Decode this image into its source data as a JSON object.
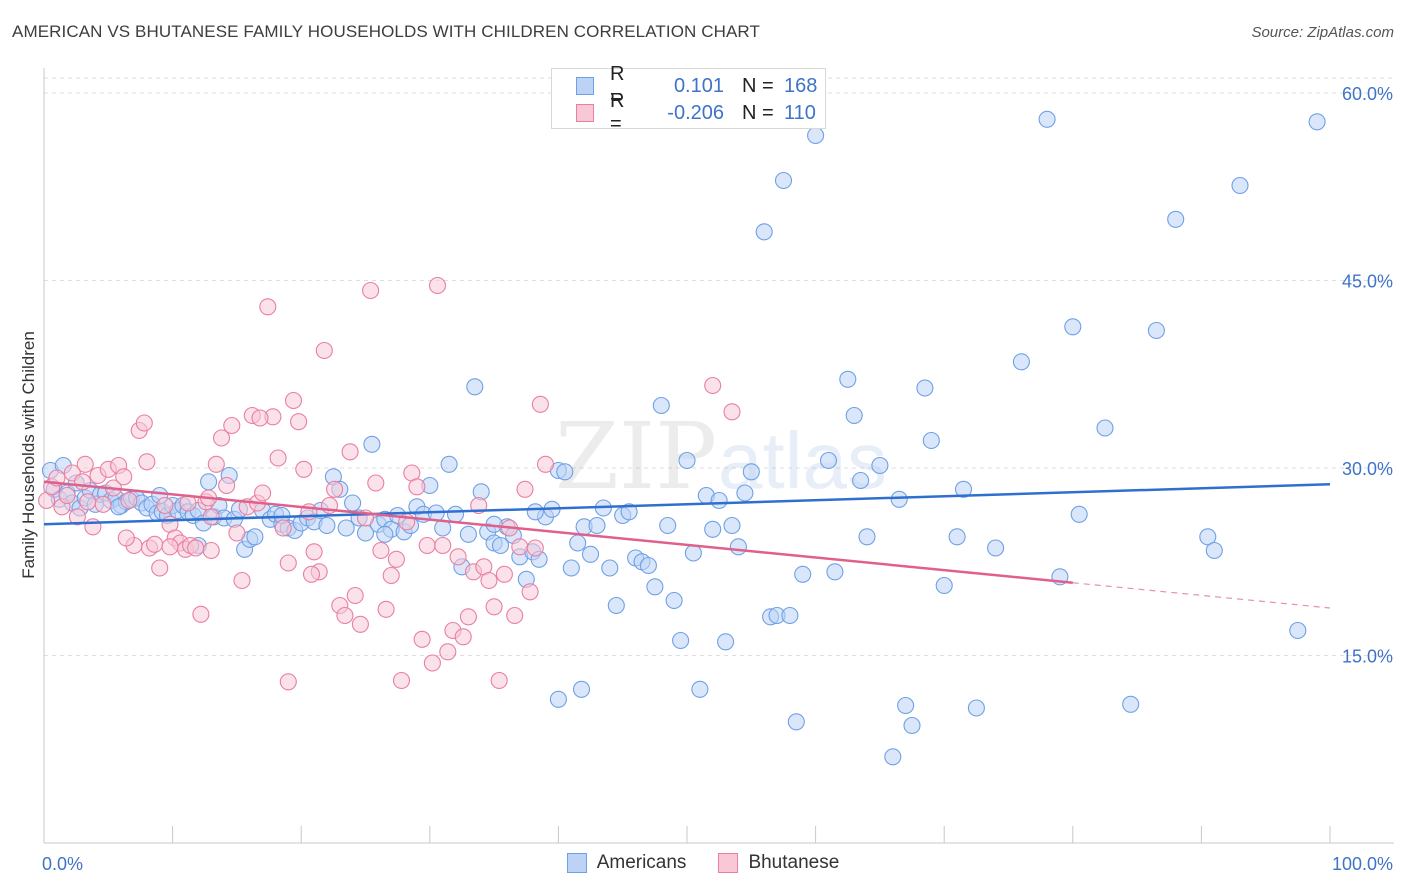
{
  "header": {
    "title": "AMERICAN VS BHUTANESE FAMILY HOUSEHOLDS WITH CHILDREN CORRELATION CHART",
    "source": "Source: ZipAtlas.com"
  },
  "watermark": {
    "part1": "ZIP",
    "part2": "atlas"
  },
  "legend": {
    "r_label": "R =",
    "n_label": "N =",
    "rows": [
      {
        "r": "0.101",
        "n": "168",
        "color": "#6fa0e6",
        "fill": "#bcd3f5"
      },
      {
        "r": "-0.206",
        "n": "110",
        "color": "#e97fa1",
        "fill": "#f8c8d7"
      }
    ]
  },
  "chart_data": {
    "type": "scatter",
    "title": "AMERICAN VS BHUTANESE FAMILY HOUSEHOLDS WITH CHILDREN CORRELATION CHART",
    "xlabel": "",
    "ylabel": "Family Households with Children",
    "xlim": [
      0,
      100
    ],
    "ylim": [
      0,
      62
    ],
    "x_tick_labels": [
      {
        "value": 0,
        "label": "0.0%"
      },
      {
        "value": 100,
        "label": "100.0%"
      }
    ],
    "y_tick_labels": [
      {
        "value": 15,
        "label": "15.0%"
      },
      {
        "value": 30,
        "label": "30.0%"
      },
      {
        "value": 45,
        "label": "45.0%"
      },
      {
        "value": 60,
        "label": "60.0%"
      }
    ],
    "grid": true,
    "legend_position": "bottom",
    "series": [
      {
        "name": "Americans",
        "color": "#6fa0e6",
        "fill": "#bcd3f5",
        "trend": {
          "x0": 0,
          "y0": 25.5,
          "x1": 100,
          "y1": 28.7,
          "dashed_from": null
        },
        "points": [
          [
            0.5,
            29.8
          ],
          [
            0.8,
            28.3
          ],
          [
            1.2,
            27.5
          ],
          [
            1.5,
            30.2
          ],
          [
            1.8,
            28.0
          ],
          [
            2.2,
            27.2
          ],
          [
            2.5,
            28.8
          ],
          [
            2.8,
            26.8
          ],
          [
            3.2,
            27.6
          ],
          [
            3.6,
            28.2
          ],
          [
            4.0,
            27.1
          ],
          [
            4.4,
            27.9
          ],
          [
            4.8,
            28.0
          ],
          [
            5.2,
            27.4
          ],
          [
            5.6,
            27.6
          ],
          [
            6.0,
            27.0
          ],
          [
            6.4,
            27.3
          ],
          [
            6.8,
            27.5
          ],
          [
            7.2,
            27.6
          ],
          [
            7.6,
            27.2
          ],
          [
            8.0,
            26.8
          ],
          [
            8.4,
            27.1
          ],
          [
            8.8,
            26.4
          ],
          [
            9.2,
            26.5
          ],
          [
            9.6,
            26.2
          ],
          [
            10.0,
            27.0
          ],
          [
            10.4,
            26.6
          ],
          [
            10.8,
            27.0
          ],
          [
            11.2,
            26.5
          ],
          [
            11.6,
            26.2
          ],
          [
            12.0,
            26.6
          ],
          [
            12.4,
            25.6
          ],
          [
            12.8,
            28.9
          ],
          [
            13.2,
            26.1
          ],
          [
            13.6,
            27.0
          ],
          [
            14.0,
            26.0
          ],
          [
            14.4,
            29.4
          ],
          [
            14.8,
            25.9
          ],
          [
            15.2,
            26.7
          ],
          [
            15.6,
            23.5
          ],
          [
            16.0,
            24.3
          ],
          [
            16.4,
            24.5
          ],
          [
            17.0,
            26.6
          ],
          [
            17.6,
            25.9
          ],
          [
            18.0,
            26.3
          ],
          [
            18.5,
            25.5
          ],
          [
            19.0,
            25.2
          ],
          [
            19.5,
            25.0
          ],
          [
            20.0,
            25.6
          ],
          [
            20.5,
            26.0
          ],
          [
            21.0,
            25.7
          ],
          [
            21.5,
            26.6
          ],
          [
            22.0,
            25.4
          ],
          [
            22.5,
            29.3
          ],
          [
            23.0,
            28.3
          ],
          [
            23.5,
            25.2
          ],
          [
            24.0,
            27.2
          ],
          [
            24.5,
            26.0
          ],
          [
            25.0,
            24.8
          ],
          [
            25.5,
            31.9
          ],
          [
            26.0,
            25.5
          ],
          [
            26.5,
            25.9
          ],
          [
            27.0,
            25.1
          ],
          [
            27.5,
            26.2
          ],
          [
            28.0,
            24.9
          ],
          [
            28.5,
            25.4
          ],
          [
            29.0,
            26.9
          ],
          [
            29.5,
            26.3
          ],
          [
            30.0,
            28.6
          ],
          [
            30.5,
            26.4
          ],
          [
            31.0,
            25.2
          ],
          [
            31.5,
            30.3
          ],
          [
            32.0,
            26.3
          ],
          [
            32.5,
            22.1
          ],
          [
            33.0,
            24.7
          ],
          [
            33.5,
            36.5
          ],
          [
            34.0,
            28.1
          ],
          [
            34.5,
            24.9
          ],
          [
            35.0,
            24.0
          ],
          [
            35.5,
            23.8
          ],
          [
            36.0,
            25.3
          ],
          [
            36.5,
            24.6
          ],
          [
            37.0,
            22.9
          ],
          [
            37.5,
            21.1
          ],
          [
            38.0,
            23.3
          ],
          [
            38.5,
            22.7
          ],
          [
            39.0,
            26.1
          ],
          [
            39.5,
            26.7
          ],
          [
            40.0,
            29.8
          ],
          [
            40.5,
            29.7
          ],
          [
            41.0,
            22.0
          ],
          [
            41.5,
            24.0
          ],
          [
            42.0,
            25.3
          ],
          [
            42.5,
            23.1
          ],
          [
            43.0,
            25.4
          ],
          [
            43.5,
            26.8
          ],
          [
            44.0,
            22.0
          ],
          [
            44.5,
            19.0
          ],
          [
            45.0,
            26.2
          ],
          [
            45.5,
            26.5
          ],
          [
            46.0,
            22.8
          ],
          [
            46.5,
            22.5
          ],
          [
            47.0,
            22.2
          ],
          [
            47.5,
            20.5
          ],
          [
            48.0,
            35.0
          ],
          [
            48.5,
            25.4
          ],
          [
            49.0,
            19.4
          ],
          [
            49.5,
            16.2
          ],
          [
            50.0,
            30.6
          ],
          [
            50.5,
            23.2
          ],
          [
            51.0,
            12.3
          ],
          [
            51.5,
            27.8
          ],
          [
            52.0,
            25.1
          ],
          [
            52.5,
            27.4
          ],
          [
            53.0,
            16.1
          ],
          [
            53.5,
            25.4
          ],
          [
            54.0,
            23.7
          ],
          [
            54.5,
            28.0
          ],
          [
            55.0,
            29.7
          ],
          [
            56.0,
            48.9
          ],
          [
            56.5,
            18.1
          ],
          [
            57.5,
            53.0
          ],
          [
            58.5,
            9.7
          ],
          [
            59.0,
            21.5
          ],
          [
            60.0,
            56.6
          ],
          [
            61.0,
            30.6
          ],
          [
            61.5,
            21.7
          ],
          [
            62.5,
            37.1
          ],
          [
            63.0,
            34.2
          ],
          [
            63.5,
            29.0
          ],
          [
            64.0,
            24.5
          ],
          [
            65.0,
            30.2
          ],
          [
            66.0,
            6.9
          ],
          [
            66.5,
            27.5
          ],
          [
            67.0,
            11.0
          ],
          [
            67.5,
            9.4
          ],
          [
            68.5,
            36.4
          ],
          [
            69.0,
            32.2
          ],
          [
            70.0,
            20.6
          ],
          [
            71.0,
            24.5
          ],
          [
            71.5,
            28.3
          ],
          [
            72.5,
            10.8
          ],
          [
            74.0,
            23.6
          ],
          [
            76.0,
            38.5
          ],
          [
            78.0,
            57.9
          ],
          [
            79.0,
            21.3
          ],
          [
            80.0,
            41.3
          ],
          [
            80.5,
            26.3
          ],
          [
            82.5,
            33.2
          ],
          [
            84.5,
            11.1
          ],
          [
            86.5,
            41.0
          ],
          [
            88.0,
            49.9
          ],
          [
            90.5,
            24.5
          ],
          [
            91.0,
            23.4
          ],
          [
            93.0,
            52.6
          ],
          [
            97.5,
            17.0
          ],
          [
            99.0,
            57.7
          ],
          [
            40.0,
            11.5
          ],
          [
            41.8,
            12.3
          ],
          [
            26.5,
            24.7
          ],
          [
            12.0,
            23.8
          ],
          [
            38.2,
            26.5
          ],
          [
            57.0,
            18.2
          ],
          [
            58.0,
            18.2
          ],
          [
            35.0,
            25.5
          ],
          [
            18.5,
            26.2
          ],
          [
            9.0,
            27.8
          ],
          [
            5.8,
            26.9
          ]
        ]
      },
      {
        "name": "Bhutanese",
        "color": "#e97fa1",
        "fill": "#f8c8d7",
        "trend": {
          "x0": 0,
          "y0": 28.9,
          "x1": 100,
          "y1": 18.8,
          "dashed_from": 80
        },
        "points": [
          [
            0.2,
            27.4
          ],
          [
            0.6,
            28.5
          ],
          [
            1.0,
            29.2
          ],
          [
            1.4,
            26.9
          ],
          [
            1.8,
            27.8
          ],
          [
            2.2,
            29.6
          ],
          [
            2.6,
            26.1
          ],
          [
            3.0,
            28.9
          ],
          [
            3.4,
            27.3
          ],
          [
            3.8,
            25.3
          ],
          [
            4.2,
            29.4
          ],
          [
            4.6,
            27.1
          ],
          [
            5.0,
            29.9
          ],
          [
            5.4,
            28.4
          ],
          [
            5.8,
            30.2
          ],
          [
            6.2,
            29.3
          ],
          [
            6.6,
            27.4
          ],
          [
            7.0,
            23.8
          ],
          [
            7.4,
            33.0
          ],
          [
            7.8,
            33.6
          ],
          [
            8.2,
            23.6
          ],
          [
            8.6,
            23.9
          ],
          [
            9.0,
            22.0
          ],
          [
            9.4,
            27.0
          ],
          [
            9.8,
            25.5
          ],
          [
            10.2,
            24.4
          ],
          [
            10.6,
            24.0
          ],
          [
            11.0,
            23.5
          ],
          [
            11.4,
            23.8
          ],
          [
            11.8,
            23.6
          ],
          [
            12.2,
            18.3
          ],
          [
            12.6,
            27.3
          ],
          [
            13.0,
            26.1
          ],
          [
            13.4,
            30.3
          ],
          [
            13.8,
            32.4
          ],
          [
            14.2,
            28.6
          ],
          [
            14.6,
            33.4
          ],
          [
            15.0,
            24.8
          ],
          [
            15.4,
            21.0
          ],
          [
            15.8,
            26.9
          ],
          [
            16.2,
            34.2
          ],
          [
            16.6,
            27.2
          ],
          [
            17.0,
            28.0
          ],
          [
            17.4,
            42.9
          ],
          [
            17.8,
            34.1
          ],
          [
            18.2,
            30.8
          ],
          [
            18.6,
            25.2
          ],
          [
            19.0,
            22.4
          ],
          [
            19.4,
            35.4
          ],
          [
            19.8,
            33.7
          ],
          [
            20.2,
            29.9
          ],
          [
            20.6,
            26.5
          ],
          [
            21.0,
            23.3
          ],
          [
            21.4,
            21.7
          ],
          [
            21.8,
            39.4
          ],
          [
            22.2,
            27.0
          ],
          [
            22.6,
            28.3
          ],
          [
            23.0,
            19.0
          ],
          [
            23.4,
            18.2
          ],
          [
            23.8,
            31.3
          ],
          [
            24.2,
            19.8
          ],
          [
            24.6,
            17.5
          ],
          [
            25.0,
            26.0
          ],
          [
            25.4,
            44.2
          ],
          [
            25.8,
            28.8
          ],
          [
            26.2,
            23.4
          ],
          [
            26.6,
            18.7
          ],
          [
            27.0,
            21.4
          ],
          [
            27.4,
            22.7
          ],
          [
            27.8,
            13.0
          ],
          [
            28.2,
            25.7
          ],
          [
            28.6,
            29.6
          ],
          [
            29.0,
            28.5
          ],
          [
            29.4,
            16.3
          ],
          [
            29.8,
            23.8
          ],
          [
            30.2,
            14.4
          ],
          [
            30.6,
            44.6
          ],
          [
            31.0,
            23.8
          ],
          [
            31.4,
            15.3
          ],
          [
            31.8,
            17.0
          ],
          [
            32.2,
            22.9
          ],
          [
            32.6,
            16.5
          ],
          [
            33.0,
            18.1
          ],
          [
            33.4,
            21.7
          ],
          [
            33.8,
            27.0
          ],
          [
            34.2,
            22.1
          ],
          [
            34.6,
            21.0
          ],
          [
            35.0,
            18.9
          ],
          [
            35.4,
            13.0
          ],
          [
            35.8,
            21.5
          ],
          [
            36.2,
            25.2
          ],
          [
            36.6,
            18.2
          ],
          [
            37.0,
            23.7
          ],
          [
            37.4,
            28.3
          ],
          [
            37.8,
            20.1
          ],
          [
            38.2,
            23.6
          ],
          [
            38.6,
            35.1
          ],
          [
            39.0,
            30.3
          ],
          [
            52.0,
            36.6
          ],
          [
            53.5,
            34.5
          ],
          [
            8.0,
            30.5
          ],
          [
            13.0,
            23.4
          ],
          [
            16.8,
            34.0
          ],
          [
            3.2,
            30.3
          ],
          [
            20.8,
            21.5
          ],
          [
            9.8,
            23.7
          ],
          [
            19.0,
            12.9
          ],
          [
            6.4,
            24.4
          ],
          [
            11.2,
            27.2
          ],
          [
            12.8,
            27.6
          ]
        ]
      }
    ]
  },
  "bottom_legend": {
    "items": [
      {
        "label": "Americans",
        "color": "#6fa0e6",
        "fill": "#bcd3f5"
      },
      {
        "label": "Bhutanese",
        "color": "#e97fa1",
        "fill": "#f8c8d7"
      }
    ]
  }
}
